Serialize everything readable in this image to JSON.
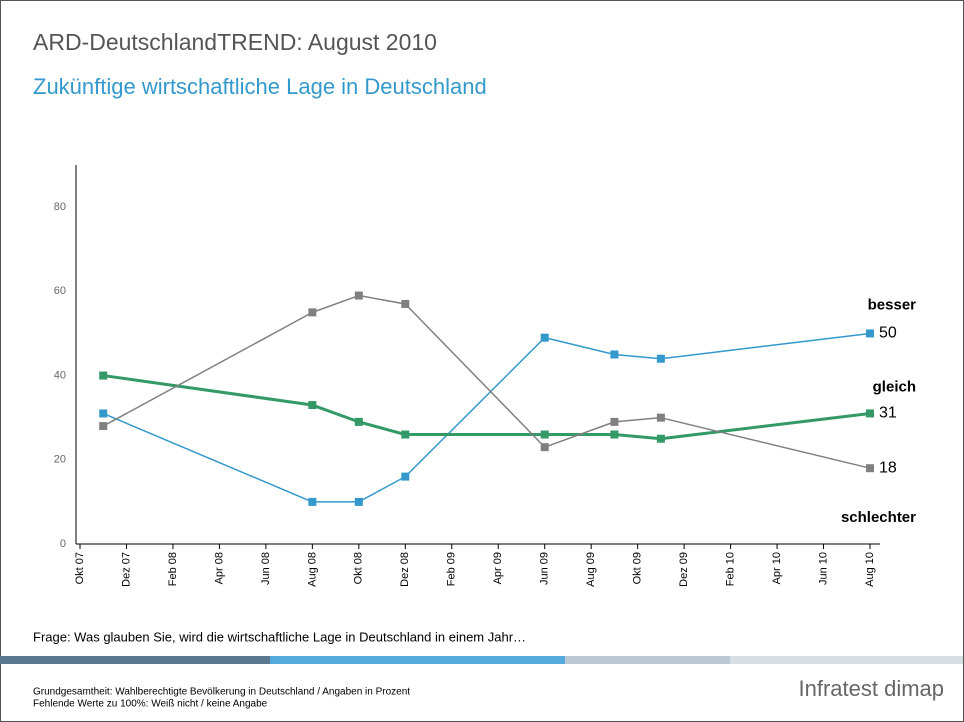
{
  "header": {
    "title": "ARD-DeutschlandTREND: August 2010",
    "subtitle": "Zukünftige wirtschaftliche Lage in Deutschland"
  },
  "chart_data": {
    "type": "line",
    "categories": [
      "Okt 07",
      null,
      "Dez 07",
      null,
      "Feb 08",
      null,
      "Apr 08",
      null,
      "Jun 08",
      null,
      "Aug 08",
      null,
      "Okt 08",
      null,
      "Dez 08",
      null,
      "Feb 09",
      null,
      "Apr 09",
      null,
      "Jun 09",
      null,
      "Aug 09",
      null,
      "Okt 09",
      null,
      "Dez 09",
      null,
      "Feb 10",
      null,
      "Apr 10",
      null,
      "Jun 10",
      null,
      "Aug 10"
    ],
    "series": [
      {
        "name": "besser",
        "color": "#3399cc",
        "values": [
          null,
          31,
          null,
          null,
          null,
          null,
          null,
          null,
          null,
          null,
          10,
          null,
          10,
          null,
          16,
          null,
          null,
          null,
          null,
          null,
          49,
          null,
          null,
          45,
          null,
          44,
          null,
          null,
          null,
          null,
          null,
          null,
          null,
          null,
          50
        ]
      },
      {
        "name": "gleich",
        "color": "#339966",
        "values": [
          null,
          40,
          null,
          null,
          null,
          null,
          null,
          null,
          null,
          null,
          33,
          null,
          29,
          null,
          26,
          null,
          null,
          null,
          null,
          null,
          26,
          null,
          null,
          26,
          null,
          25,
          null,
          null,
          null,
          null,
          null,
          null,
          null,
          null,
          31
        ]
      },
      {
        "name": "schlechter",
        "color": "#808080",
        "values": [
          null,
          28,
          null,
          null,
          null,
          null,
          null,
          null,
          null,
          null,
          55,
          null,
          59,
          null,
          57,
          null,
          null,
          null,
          null,
          null,
          23,
          null,
          null,
          29,
          null,
          30,
          null,
          null,
          null,
          null,
          null,
          null,
          null,
          null,
          18
        ]
      }
    ],
    "ylim": [
      0,
      90
    ],
    "yticks": [
      0,
      20,
      40,
      60,
      80
    ],
    "grid": false
  },
  "footer": {
    "question": "Frage: Was glauben Sie, wird die wirtschaftliche Lage in Deutschland in einem Jahr…",
    "note1": "Grundgesamtheit: Wahlberechtigte Bevölkerung in Deutschland / Angaben in Prozent",
    "note2": "Fehlende Werte zu 100%: Weiß nicht / keine Angabe",
    "logo": "Infratest dimap"
  }
}
